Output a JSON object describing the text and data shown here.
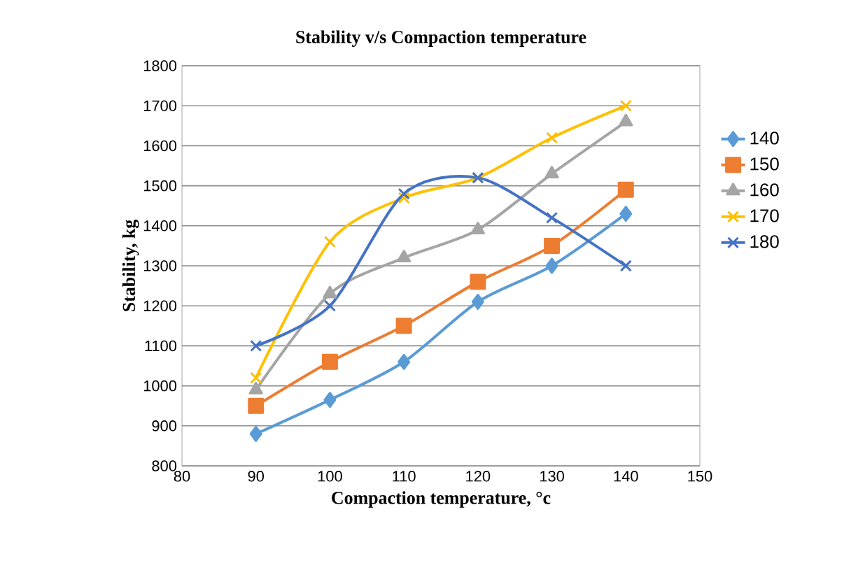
{
  "chart_data": {
    "type": "line",
    "title": "Stability v/s Compaction temperature",
    "xlabel": "Compaction temperature, °c",
    "ylabel": "Stability, kg",
    "x": [
      90,
      100,
      110,
      120,
      130,
      140
    ],
    "series": [
      {
        "name": "140",
        "color": "#5b9bd5",
        "marker": "diamond",
        "values": [
          880,
          965,
          1060,
          1210,
          1300,
          1430
        ]
      },
      {
        "name": "150",
        "color": "#ed7d31",
        "marker": "square",
        "values": [
          950,
          1060,
          1150,
          1260,
          1350,
          1490
        ]
      },
      {
        "name": "160",
        "color": "#a5a5a5",
        "marker": "triangle",
        "values": [
          990,
          1230,
          1320,
          1390,
          1530,
          1660
        ]
      },
      {
        "name": "170",
        "color": "#ffc000",
        "marker": "cross",
        "values": [
          1020,
          1360,
          1470,
          1520,
          1620,
          1700
        ]
      },
      {
        "name": "180",
        "color": "#4472c4",
        "marker": "cross",
        "values": [
          1100,
          1200,
          1480,
          1520,
          1420,
          1300
        ]
      }
    ],
    "xlim": [
      80,
      150
    ],
    "xticks": [
      80,
      90,
      100,
      110,
      120,
      130,
      140,
      150
    ],
    "ylim": [
      800,
      1800
    ],
    "yticks": [
      800,
      900,
      1000,
      1100,
      1200,
      1300,
      1400,
      1500,
      1600,
      1700,
      1800
    ],
    "grid": "y",
    "legend": "right"
  }
}
